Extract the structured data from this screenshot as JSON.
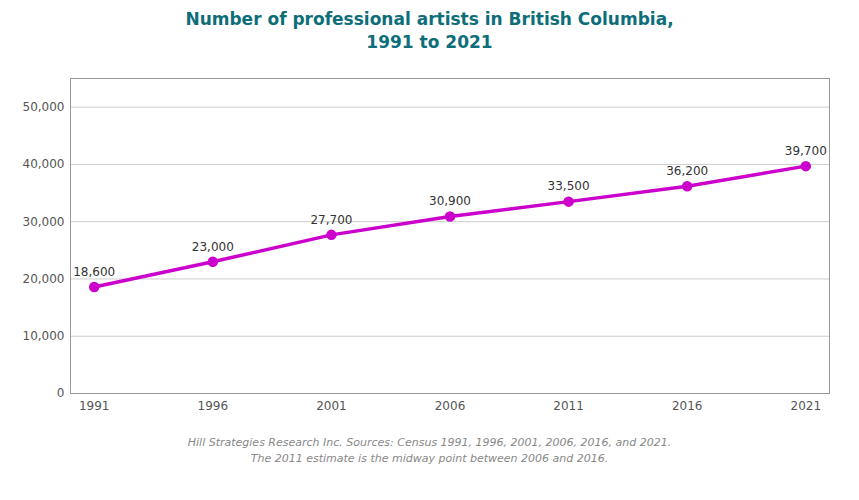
{
  "chart_data": {
    "type": "line",
    "title": "Number of professional artists in British Columbia,\n1991 to 2021",
    "caption": "Hill Strategies Research Inc. Sources: Census 1991, 1996, 2001, 2006, 2016, and 2021.\nThe 2011 estimate is the midway point between 2006 and 2016.",
    "x": [
      1991,
      1996,
      2001,
      2006,
      2011,
      2016,
      2021
    ],
    "values": [
      18600,
      23000,
      27700,
      30900,
      33500,
      36200,
      39700
    ],
    "value_labels": [
      "18,600",
      "23,000",
      "27,700",
      "30,900",
      "33,500",
      "36,200",
      "39,700"
    ],
    "data_labels": true,
    "color": "#cc00cc",
    "marker": "circle",
    "xlim": [
      1990,
      2022
    ],
    "xticks": [
      1991,
      1996,
      2001,
      2006,
      2011,
      2016,
      2021
    ],
    "ylim": [
      0,
      55000
    ],
    "yticks": [
      0,
      {
        "value": 10000,
        "label": "10,000"
      },
      {
        "value": 20000,
        "label": "20,000"
      },
      {
        "value": 30000,
        "label": "30,000"
      },
      {
        "value": 40000,
        "label": "40,000"
      },
      {
        "value": 50000,
        "label": "50,000"
      }
    ],
    "grid": true
  }
}
